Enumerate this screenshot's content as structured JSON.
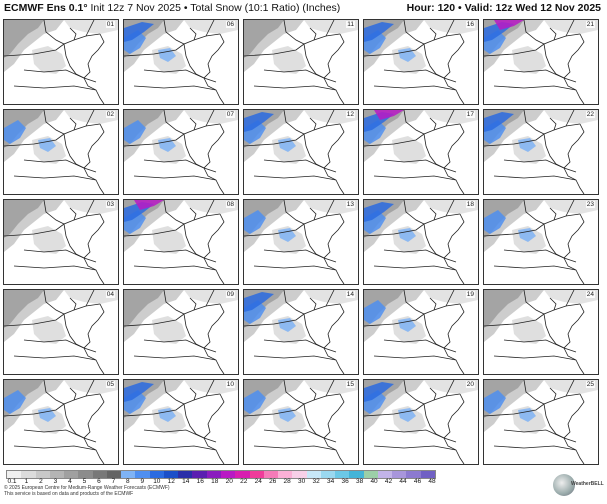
{
  "header": {
    "model": "ECMWF Ens 0.1°",
    "init": "Init 12z 7 Nov 2025",
    "separator": "•",
    "product": "Total Snow (10:1 Ratio) (Inches)",
    "hour_label": "Hour: 120",
    "valid_label": "Valid: 12z Wed 12 Nov 2025"
  },
  "members": [
    {
      "label": "01",
      "snow": "light"
    },
    {
      "label": "06",
      "snow": "heavy"
    },
    {
      "label": "11",
      "snow": "light"
    },
    {
      "label": "16",
      "snow": "heavy"
    },
    {
      "label": "21",
      "snow": "veryheavy"
    },
    {
      "label": "02",
      "snow": "moderate"
    },
    {
      "label": "07",
      "snow": "moderate"
    },
    {
      "label": "12",
      "snow": "heavy"
    },
    {
      "label": "17",
      "snow": "veryheavy"
    },
    {
      "label": "22",
      "snow": "heavy"
    },
    {
      "label": "03",
      "snow": "light"
    },
    {
      "label": "08",
      "snow": "veryheavy"
    },
    {
      "label": "13",
      "snow": "moderate"
    },
    {
      "label": "18",
      "snow": "heavy"
    },
    {
      "label": "23",
      "snow": "moderate"
    },
    {
      "label": "04",
      "snow": "light"
    },
    {
      "label": "09",
      "snow": "light"
    },
    {
      "label": "14",
      "snow": "heavy"
    },
    {
      "label": "19",
      "snow": "moderate"
    },
    {
      "label": "24",
      "snow": "light"
    },
    {
      "label": "05",
      "snow": "moderate"
    },
    {
      "label": "10",
      "snow": "heavy"
    },
    {
      "label": "15",
      "snow": "moderate"
    },
    {
      "label": "20",
      "snow": "heavy"
    },
    {
      "label": "25",
      "snow": "moderate"
    }
  ],
  "legend": {
    "ticks": [
      "0.1",
      "1",
      "2",
      "3",
      "4",
      "5",
      "6",
      "7",
      "8",
      "9",
      "10",
      "12",
      "14",
      "16",
      "18",
      "20",
      "22",
      "24",
      "26",
      "28",
      "30",
      "32",
      "34",
      "36",
      "38",
      "40",
      "42",
      "44",
      "46",
      "48"
    ],
    "colors": [
      "#f0f0f0",
      "#dcdcdc",
      "#c8c8c8",
      "#b4b4b4",
      "#a0a0a0",
      "#8c8c8c",
      "#787878",
      "#646464",
      "#7fb3f5",
      "#4f8ff0",
      "#2b6be0",
      "#1b4fc8",
      "#2a2ea8",
      "#5a1fb0",
      "#8a1dbe",
      "#b81ac4",
      "#d81eb0",
      "#ef3c9a",
      "#f57ab8",
      "#fbb0d6",
      "#f8d0e8",
      "#c8e8f8",
      "#9ad8f0",
      "#6cc8e6",
      "#44b4d8",
      "#9ccfa8",
      "#c2b4e8",
      "#a896dc",
      "#8c7ad0",
      "#7060c4"
    ]
  },
  "footer": {
    "copyright": "© 2025 European Centre for Medium-Range Weather Forecasts (ECMWF)",
    "note": "This service is based on data and products of the ECMWF"
  },
  "logo": {
    "text": "WeatherBELL"
  }
}
